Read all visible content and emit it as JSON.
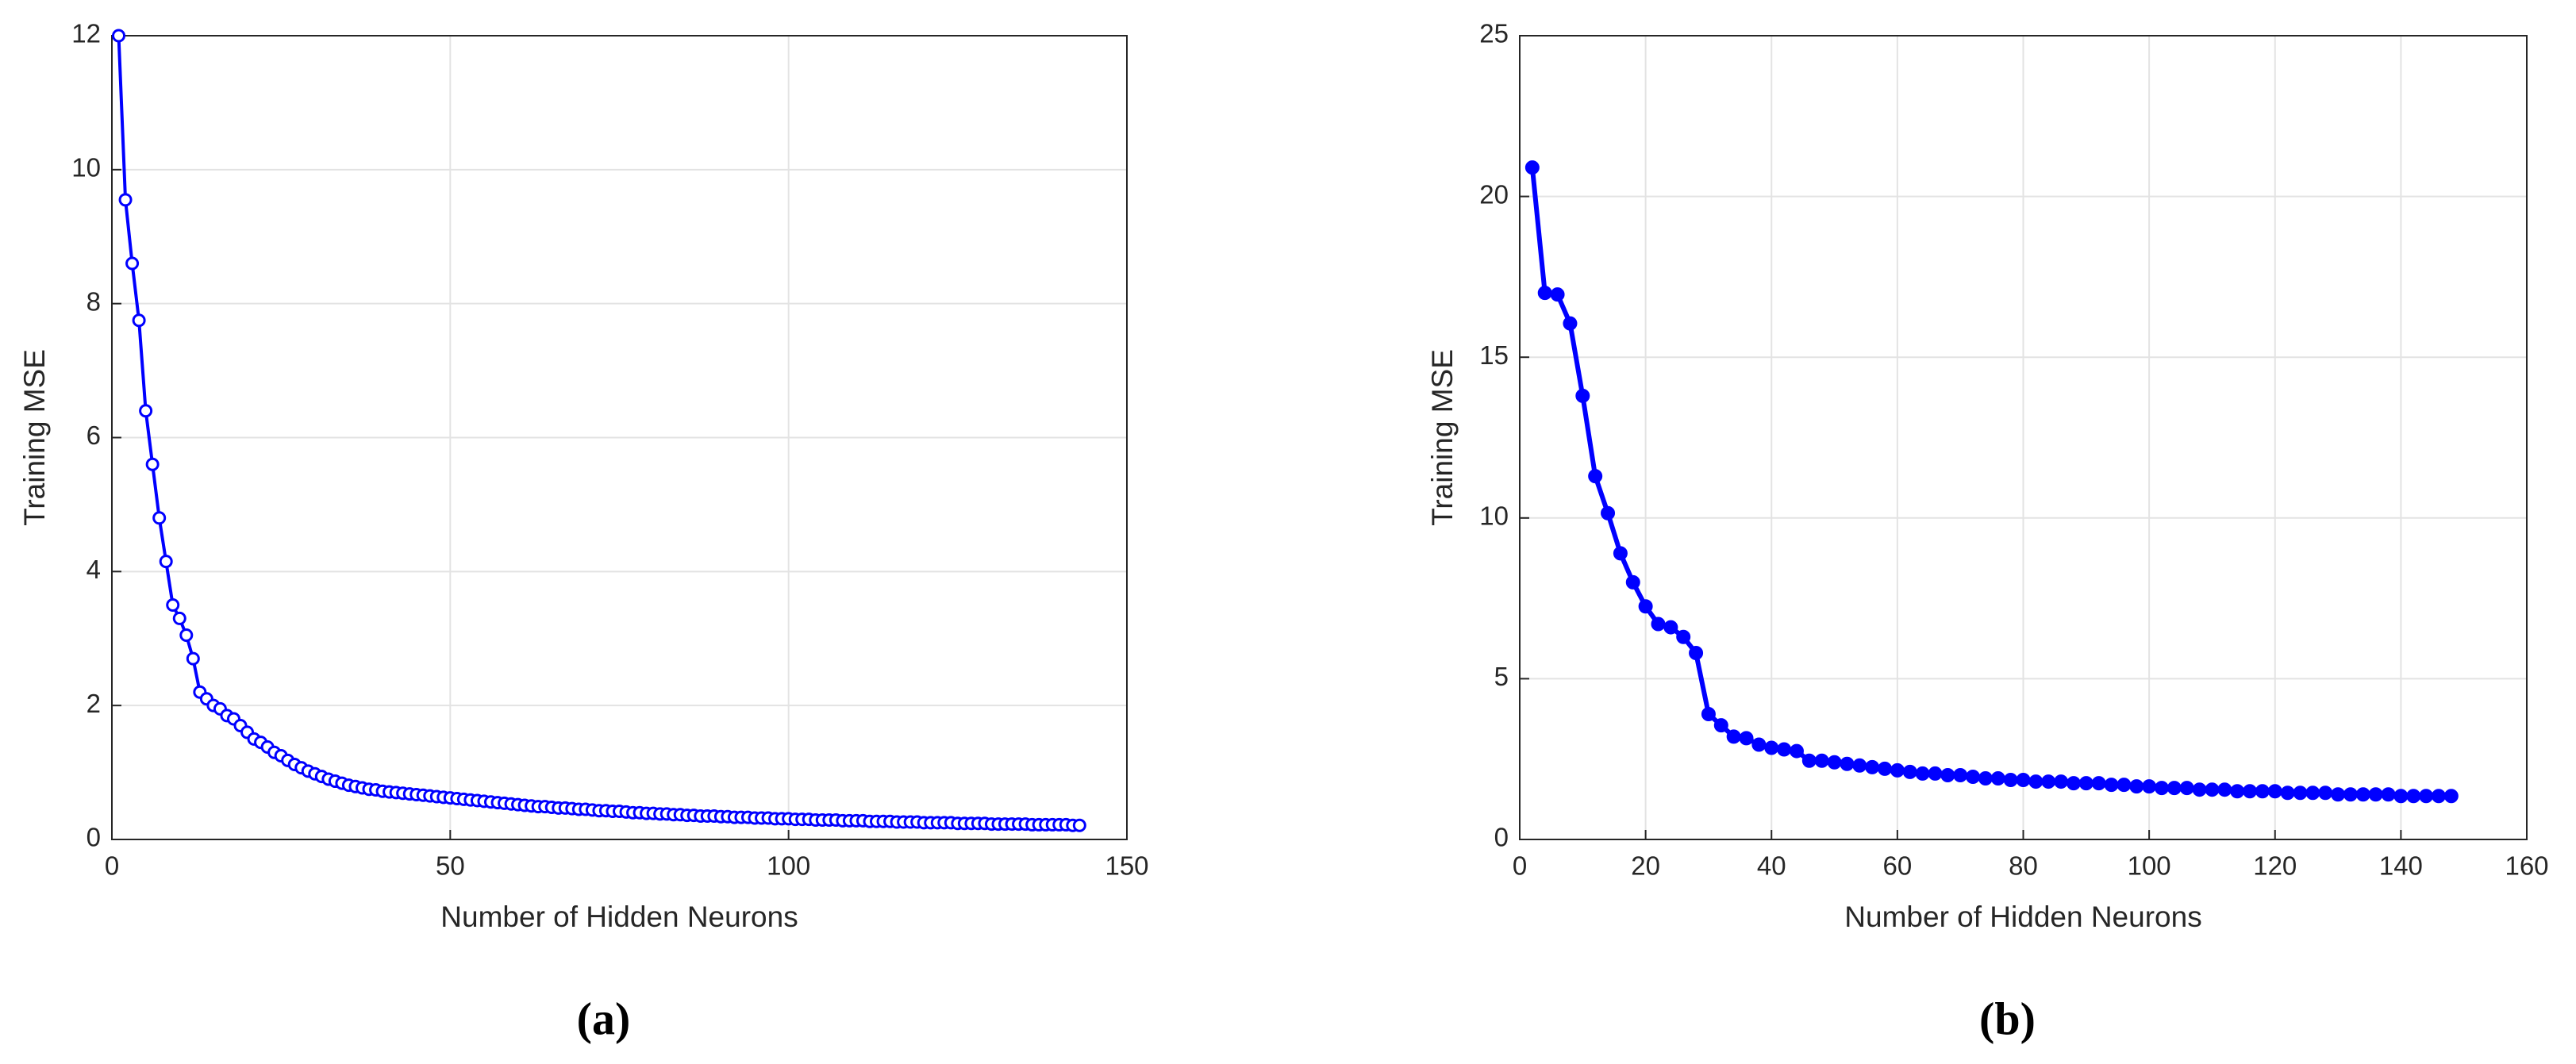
{
  "chart_data": [
    {
      "type": "line",
      "caption": "(a)",
      "x_label": "Number of Hidden Neurons",
      "y_label": "Training MSE",
      "grid": true,
      "marker": "open",
      "xlim": [
        0,
        150
      ],
      "xticks": [
        0,
        50,
        100,
        150
      ],
      "ylim": [
        0,
        12
      ],
      "yticks": [
        0,
        2,
        4,
        6,
        8,
        10,
        12
      ],
      "series": [
        {
          "color": "#0000ff",
          "x": [
            1,
            2,
            3,
            4,
            5,
            6,
            7,
            8,
            9,
            10,
            11,
            12,
            13,
            14,
            15,
            16,
            17,
            18,
            19,
            20,
            21,
            22,
            23,
            24,
            25,
            26,
            27,
            28,
            29,
            30,
            31,
            32,
            33,
            34,
            35,
            36,
            37,
            38,
            39,
            40,
            41,
            42,
            43,
            44,
            45,
            46,
            47,
            48,
            49,
            50,
            51,
            52,
            53,
            54,
            55,
            56,
            57,
            58,
            59,
            60,
            61,
            62,
            63,
            64,
            65,
            66,
            67,
            68,
            69,
            70,
            71,
            72,
            73,
            74,
            75,
            76,
            77,
            78,
            79,
            80,
            81,
            82,
            83,
            84,
            85,
            86,
            87,
            88,
            89,
            90,
            91,
            92,
            93,
            94,
            95,
            96,
            97,
            98,
            99,
            100,
            101,
            102,
            103,
            104,
            105,
            106,
            107,
            108,
            109,
            110,
            111,
            112,
            113,
            114,
            115,
            116,
            117,
            118,
            119,
            120,
            121,
            122,
            123,
            124,
            125,
            126,
            127,
            128,
            129,
            130,
            131,
            132,
            133,
            134,
            135,
            136,
            137,
            138,
            139,
            140,
            141,
            142,
            143
          ],
          "values": [
            12.0,
            9.55,
            8.6,
            7.75,
            6.4,
            5.6,
            4.8,
            4.15,
            3.5,
            3.3,
            3.05,
            2.7,
            2.2,
            2.1,
            2.0,
            1.95,
            1.85,
            1.8,
            1.7,
            1.6,
            1.5,
            1.45,
            1.38,
            1.3,
            1.25,
            1.18,
            1.12,
            1.07,
            1.02,
            0.98,
            0.94,
            0.9,
            0.87,
            0.84,
            0.81,
            0.79,
            0.77,
            0.75,
            0.74,
            0.72,
            0.71,
            0.7,
            0.69,
            0.68,
            0.67,
            0.66,
            0.65,
            0.64,
            0.63,
            0.62,
            0.61,
            0.6,
            0.59,
            0.58,
            0.57,
            0.56,
            0.55,
            0.54,
            0.53,
            0.52,
            0.51,
            0.5,
            0.49,
            0.49,
            0.48,
            0.47,
            0.47,
            0.46,
            0.45,
            0.45,
            0.44,
            0.43,
            0.43,
            0.42,
            0.42,
            0.41,
            0.4,
            0.4,
            0.39,
            0.39,
            0.38,
            0.38,
            0.37,
            0.37,
            0.36,
            0.36,
            0.35,
            0.35,
            0.35,
            0.34,
            0.34,
            0.33,
            0.33,
            0.33,
            0.32,
            0.32,
            0.32,
            0.31,
            0.31,
            0.31,
            0.3,
            0.3,
            0.3,
            0.29,
            0.29,
            0.29,
            0.29,
            0.28,
            0.28,
            0.28,
            0.28,
            0.27,
            0.27,
            0.27,
            0.27,
            0.26,
            0.26,
            0.26,
            0.26,
            0.25,
            0.25,
            0.25,
            0.25,
            0.25,
            0.24,
            0.24,
            0.24,
            0.24,
            0.24,
            0.23,
            0.23,
            0.23,
            0.23,
            0.23,
            0.23,
            0.22,
            0.22,
            0.22,
            0.22,
            0.22,
            0.22,
            0.21,
            0.21
          ]
        }
      ]
    },
    {
      "type": "line",
      "caption": "(b)",
      "x_label": "Number of Hidden Neurons",
      "y_label": "Training MSE",
      "grid": true,
      "marker": "filled",
      "xlim": [
        0,
        160
      ],
      "xticks": [
        0,
        20,
        40,
        60,
        80,
        100,
        120,
        140,
        160
      ],
      "ylim": [
        0,
        25
      ],
      "yticks": [
        0,
        5,
        10,
        15,
        20,
        25
      ],
      "series": [
        {
          "color": "#0000ff",
          "x": [
            2,
            4,
            6,
            8,
            10,
            12,
            14,
            16,
            18,
            20,
            22,
            24,
            26,
            28,
            30,
            32,
            34,
            36,
            38,
            40,
            42,
            44,
            46,
            48,
            50,
            52,
            54,
            56,
            58,
            60,
            62,
            64,
            66,
            68,
            70,
            72,
            74,
            76,
            78,
            80,
            82,
            84,
            86,
            88,
            90,
            92,
            94,
            96,
            98,
            100,
            102,
            104,
            106,
            108,
            110,
            112,
            114,
            116,
            118,
            120,
            122,
            124,
            126,
            128,
            130,
            132,
            134,
            136,
            138,
            140,
            142,
            144,
            146,
            148
          ],
          "values": [
            20.9,
            17.0,
            16.95,
            16.05,
            13.8,
            11.3,
            10.15,
            8.9,
            8.0,
            7.25,
            6.7,
            6.6,
            6.3,
            5.8,
            3.9,
            3.55,
            3.2,
            3.15,
            2.95,
            2.85,
            2.8,
            2.75,
            2.45,
            2.45,
            2.4,
            2.35,
            2.3,
            2.25,
            2.2,
            2.15,
            2.1,
            2.05,
            2.05,
            2.0,
            2.0,
            1.95,
            1.9,
            1.9,
            1.85,
            1.85,
            1.8,
            1.8,
            1.8,
            1.75,
            1.75,
            1.75,
            1.7,
            1.7,
            1.65,
            1.65,
            1.6,
            1.6,
            1.6,
            1.55,
            1.55,
            1.55,
            1.5,
            1.5,
            1.5,
            1.5,
            1.45,
            1.45,
            1.45,
            1.45,
            1.4,
            1.4,
            1.4,
            1.4,
            1.4,
            1.35,
            1.35,
            1.35,
            1.35,
            1.35
          ]
        }
      ]
    }
  ]
}
